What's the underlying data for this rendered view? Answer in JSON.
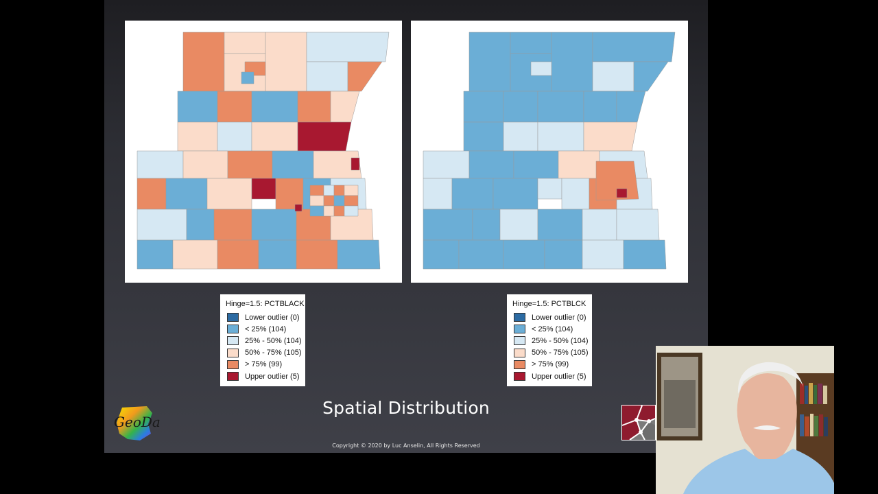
{
  "slide": {
    "title": "Spatial Distribution",
    "copyright": "Copyright © 2020 by Luc Anselin, All Rights Reserved",
    "logo_text": "GeoDa"
  },
  "maps": [
    {
      "legend": {
        "title": "Hinge=1.5: PCTBLACK",
        "items": [
          {
            "label": "Lower outlier (0)",
            "color": "#2c6ba3"
          },
          {
            "label": "< 25% (104)",
            "color": "#6baed6"
          },
          {
            "label": "25% - 50% (104)",
            "color": "#d6e8f3"
          },
          {
            "label": "50% - 75% (105)",
            "color": "#fbdcca"
          },
          {
            "label": "> 75% (99)",
            "color": "#e98a63"
          },
          {
            "label": "Upper outlier (5)",
            "color": "#a81830"
          }
        ]
      }
    },
    {
      "legend": {
        "title": "Hinge=1.5: PCTBLCK",
        "items": [
          {
            "label": "Lower outlier (0)",
            "color": "#2c6ba3"
          },
          {
            "label": "< 25% (104)",
            "color": "#6baed6"
          },
          {
            "label": "25% - 50% (104)",
            "color": "#d6e8f3"
          },
          {
            "label": "50% - 75% (105)",
            "color": "#fbdcca"
          },
          {
            "label": "> 75% (99)",
            "color": "#e98a63"
          },
          {
            "label": "Upper outlier (5)",
            "color": "#a81830"
          }
        ]
      }
    }
  ]
}
